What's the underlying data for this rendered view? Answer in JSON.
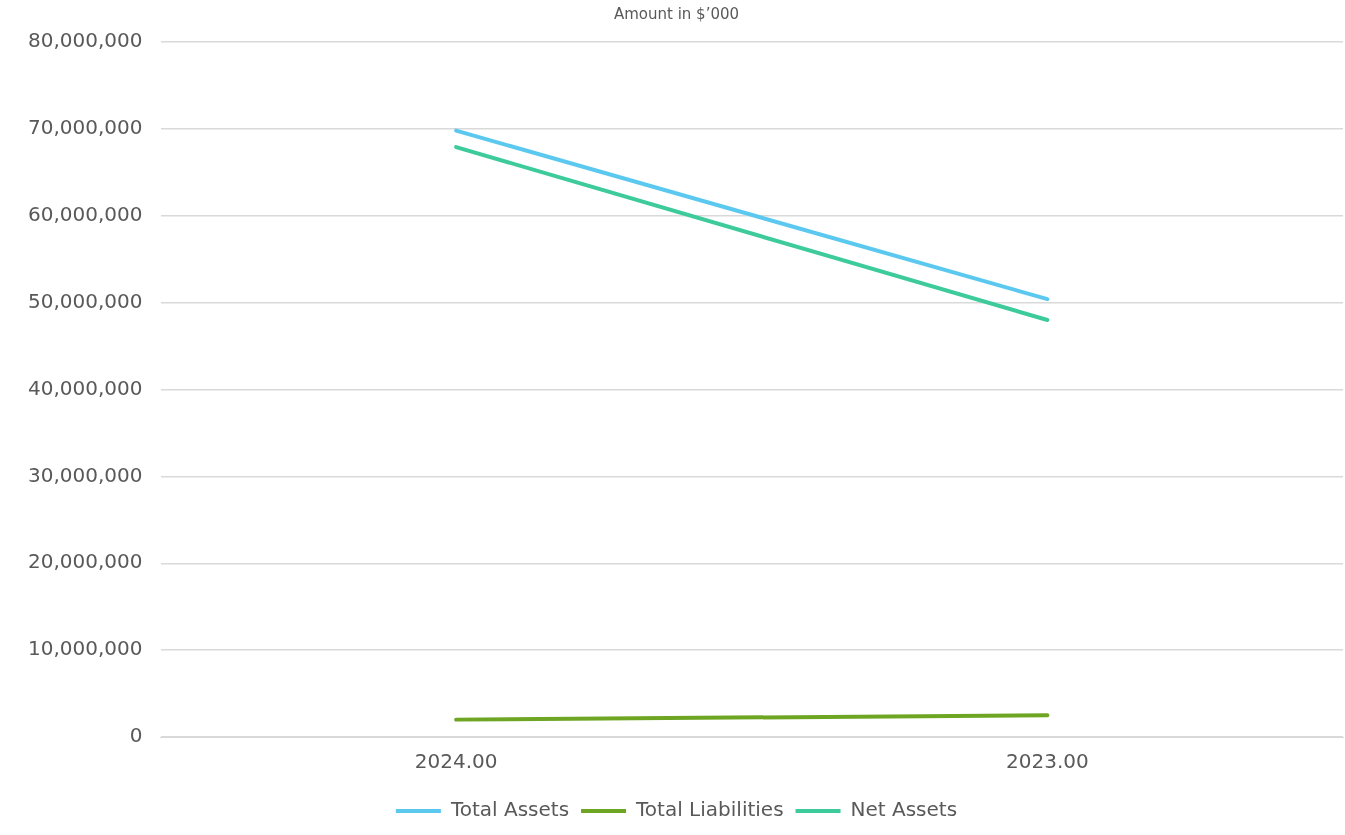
{
  "chart_data": {
    "type": "line",
    "title": "Amount in $’000",
    "categories": [
      "2024.00",
      "2023.00"
    ],
    "series": [
      {
        "name": "Total Assets",
        "color": "#5bc8ef",
        "values": [
          69800000,
          50400000
        ]
      },
      {
        "name": "Total Liabilities",
        "color": "#6ea624",
        "values": [
          2000000,
          2500000
        ]
      },
      {
        "name": "Net Assets",
        "color": "#3ecb9b",
        "values": [
          67900000,
          48000000
        ]
      }
    ],
    "ylim": [
      0,
      80000000
    ],
    "yticks": [
      {
        "value": 0,
        "label": "0"
      },
      {
        "value": 10000000,
        "label": "10,000,000"
      },
      {
        "value": 20000000,
        "label": "20,000,000"
      },
      {
        "value": 30000000,
        "label": "30,000,000"
      },
      {
        "value": 40000000,
        "label": "40,000,000"
      },
      {
        "value": 50000000,
        "label": "50,000,000"
      },
      {
        "value": 60000000,
        "label": "60,000,000"
      },
      {
        "value": 70000000,
        "label": "70,000,000"
      },
      {
        "value": 80000000,
        "label": "80,000,000"
      }
    ],
    "grid": "y",
    "legend": "bottom",
    "marker": "none",
    "line_style": "solid"
  }
}
